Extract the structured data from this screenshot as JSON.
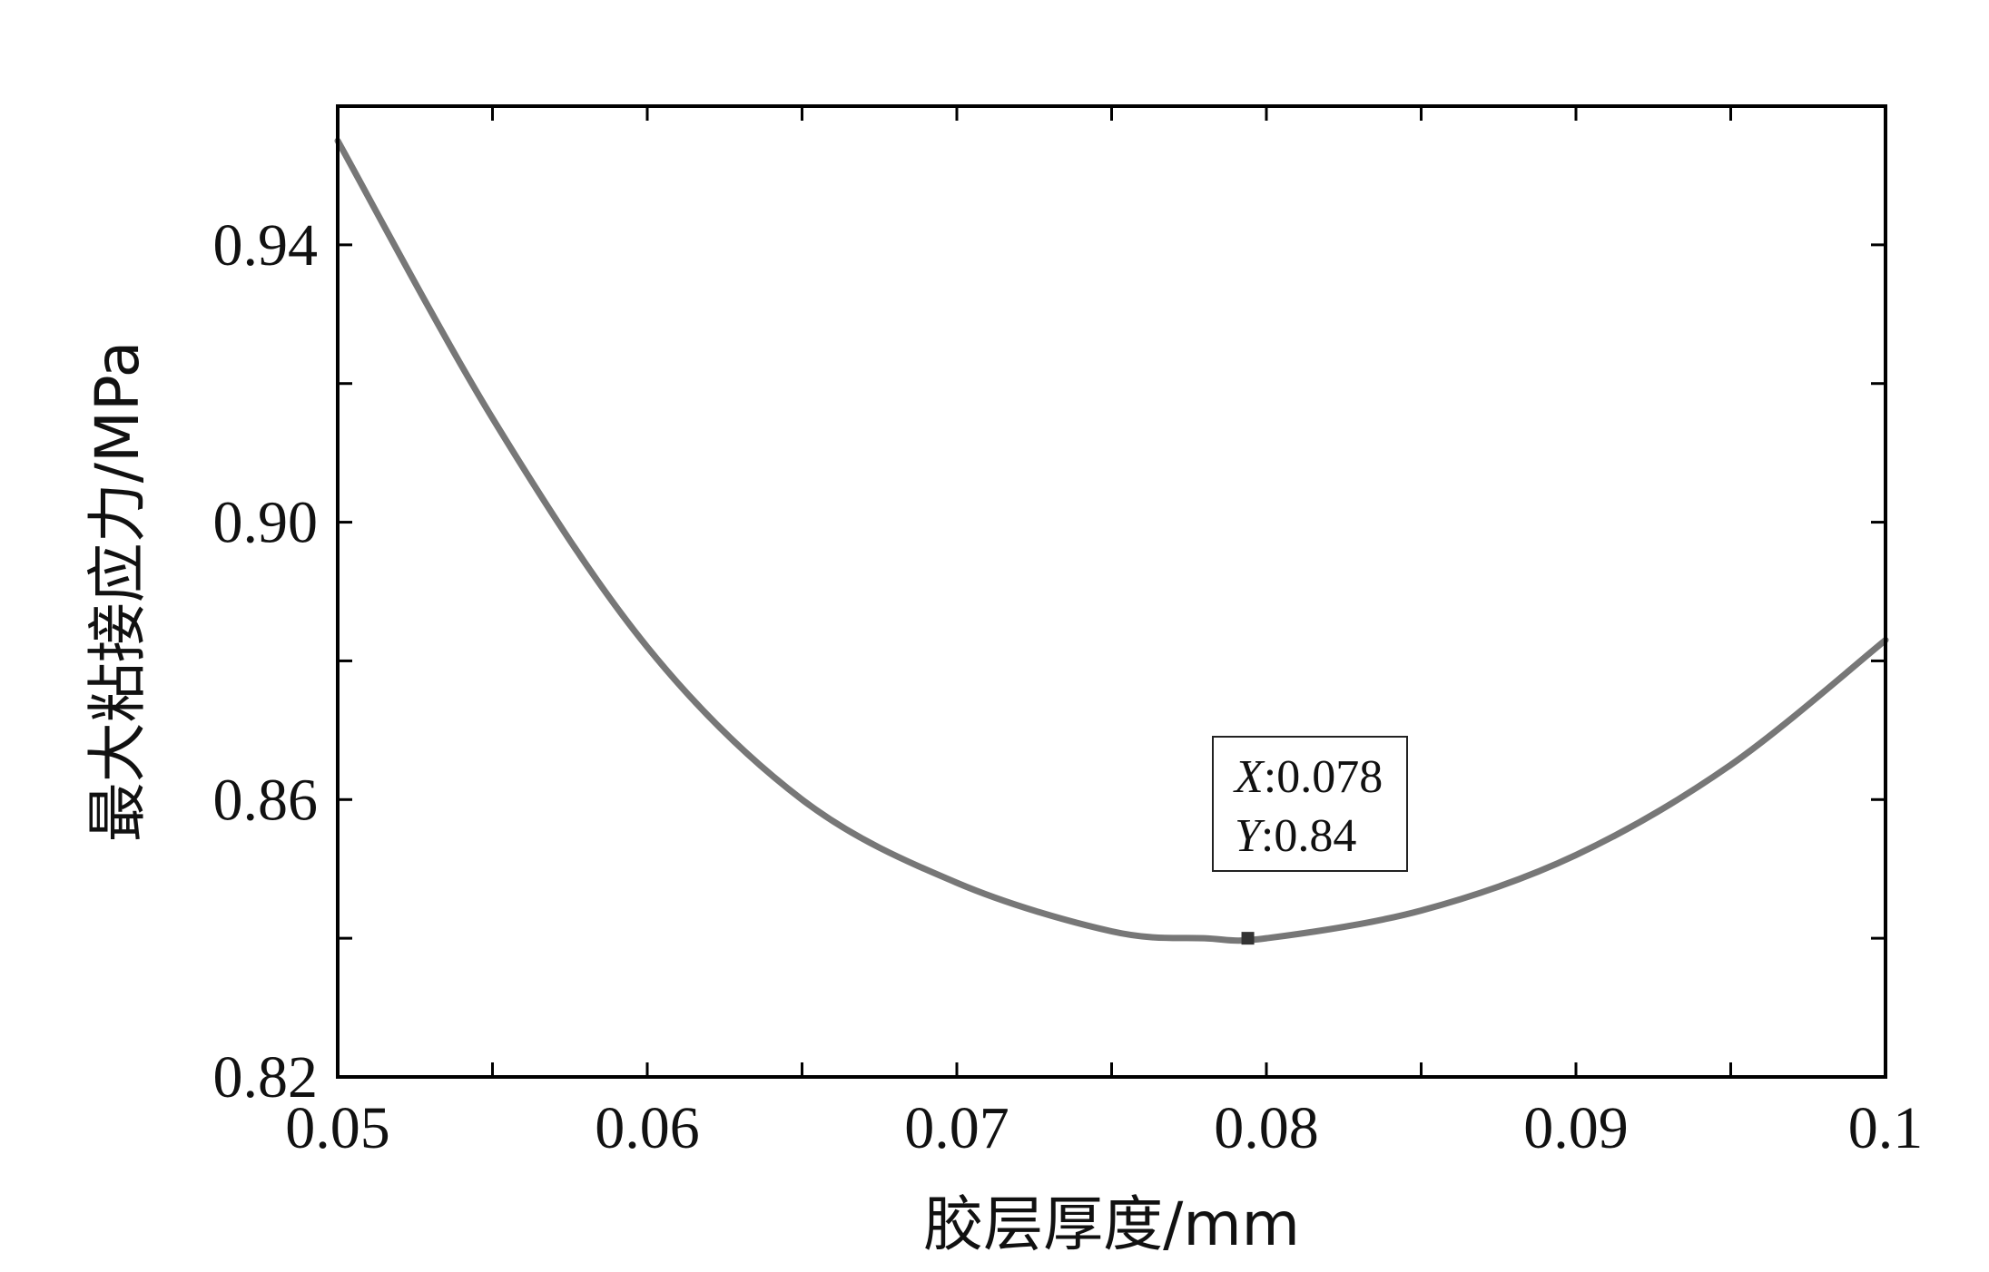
{
  "chart_data": {
    "type": "line",
    "title": "",
    "xlabel": "胶层厚度/mm",
    "ylabel": "最大粘接应力/MPa",
    "xlim": [
      0.05,
      0.1
    ],
    "ylim": [
      0.82,
      0.96
    ],
    "x_ticks": [
      0.05,
      0.06,
      0.07,
      0.08,
      0.09,
      0.1
    ],
    "x_tick_labels": [
      "0.05",
      "0.06",
      "0.07",
      "0.08",
      "0.09",
      "0.1"
    ],
    "y_ticks": [
      0.82,
      0.86,
      0.9,
      0.94
    ],
    "y_tick_labels": [
      "0.82",
      "0.86",
      "0.90",
      "0.94"
    ],
    "grid": false,
    "series": [
      {
        "x": [
          0.05,
          0.055,
          0.06,
          0.065,
          0.07,
          0.075,
          0.078,
          0.08,
          0.085,
          0.09,
          0.095,
          0.1
        ],
        "y": [
          0.955,
          0.915,
          0.882,
          0.86,
          0.848,
          0.841,
          0.84,
          0.84,
          0.844,
          0.852,
          0.865,
          0.883
        ],
        "color": "#777777"
      }
    ],
    "datatip": {
      "x_key": "X",
      "x_value": "0.078",
      "y_key": "Y",
      "y_value": "0.84",
      "x": 0.0794,
      "y": 0.84
    }
  }
}
